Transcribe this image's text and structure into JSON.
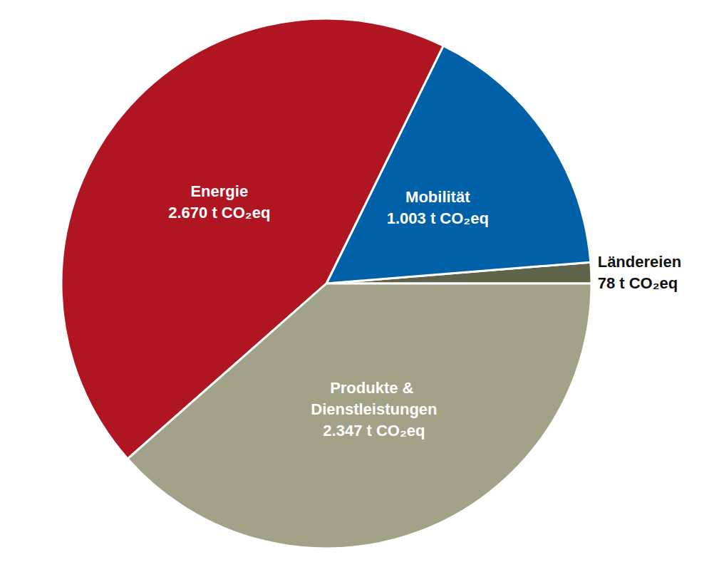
{
  "chart_data": {
    "type": "pie",
    "categories": [
      "Ländereien",
      "Mobilität",
      "Energie",
      "Produkte & Dienstleistungen"
    ],
    "values": [
      78,
      1003,
      2670,
      2347
    ],
    "value_labels": [
      "78 t CO₂eq",
      "1.003 t CO₂eq",
      "2.670 t CO₂eq",
      "2.347 t CO₂eq"
    ],
    "colors": [
      "#5f6349",
      "#0061a8",
      "#b01522",
      "#a2a288"
    ],
    "data_labels": true
  }
}
